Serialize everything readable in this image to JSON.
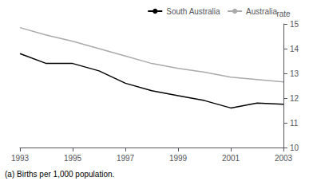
{
  "chart_data": {
    "type": "line",
    "x": [
      1993,
      1994,
      1995,
      1996,
      1997,
      1998,
      1999,
      2000,
      2001,
      2002,
      2003
    ],
    "series": [
      {
        "name": "South Australia",
        "color": "#000000",
        "values": [
          13.8,
          13.4,
          13.4,
          13.1,
          12.6,
          12.3,
          12.1,
          11.9,
          11.6,
          11.8,
          11.75
        ]
      },
      {
        "name": "Australia",
        "color": "#aaaaaa",
        "values": [
          14.85,
          14.55,
          14.3,
          14.0,
          13.7,
          13.4,
          13.2,
          13.05,
          12.85,
          12.75,
          12.65
        ]
      }
    ],
    "xlim": [
      1993,
      2003
    ],
    "xticks": [
      1993,
      1995,
      1997,
      1999,
      2001,
      2003
    ],
    "ylim": [
      10,
      15
    ],
    "yticks": [
      10,
      11,
      12,
      13,
      14,
      15
    ],
    "ylabel": "rate",
    "annotations": [
      "(a) Births per 1,000 population."
    ],
    "legend": "upper right",
    "grid": false
  }
}
